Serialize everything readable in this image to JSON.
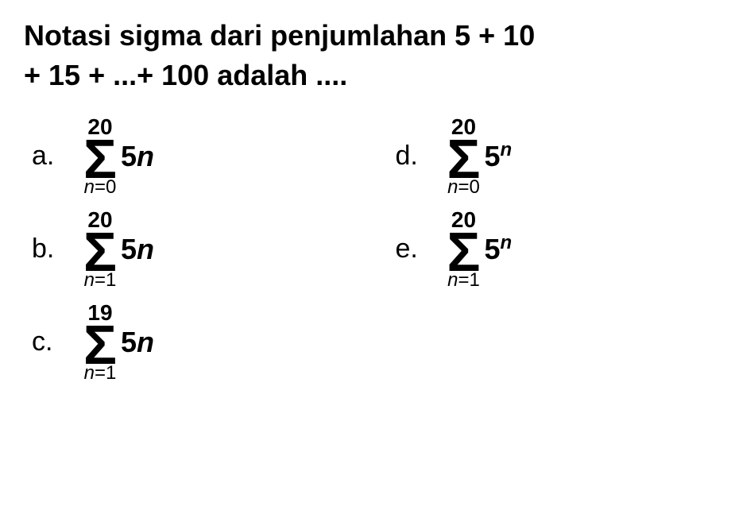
{
  "question_line1": "Notasi sigma dari penjumlahan 5 + 10",
  "question_line2": "+ 15 + ...+ 100 adalah ....",
  "options": {
    "a": {
      "label": "a.",
      "upper": "20",
      "lower_var": "n",
      "lower_eq": "=0",
      "coef": "5",
      "term_var": "n",
      "is_exponent": false
    },
    "b": {
      "label": "b.",
      "upper": "20",
      "lower_var": "n",
      "lower_eq": "=1",
      "coef": "5",
      "term_var": "n",
      "is_exponent": false
    },
    "c": {
      "label": "c.",
      "upper": "19",
      "lower_var": "n",
      "lower_eq": "=1",
      "coef": "5",
      "term_var": "n",
      "is_exponent": false
    },
    "d": {
      "label": "d.",
      "upper": "20",
      "lower_var": "n",
      "lower_eq": "=0",
      "coef": "5",
      "term_var": "n",
      "is_exponent": true
    },
    "e": {
      "label": "e.",
      "upper": "20",
      "lower_var": "n",
      "lower_eq": "=1",
      "coef": "5",
      "term_var": "n",
      "is_exponent": true
    }
  },
  "sigma_symbol": "Σ",
  "colors": {
    "text": "#000000",
    "background": "#ffffff"
  },
  "fonts": {
    "question_size": 36,
    "option_label_size": 34,
    "sigma_size": 70,
    "upper_size": 28,
    "lower_size": 24,
    "term_size": 36
  }
}
